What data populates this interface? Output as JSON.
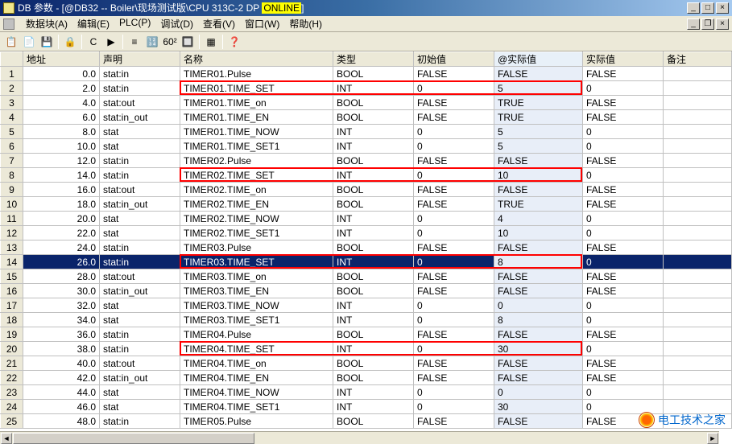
{
  "title": {
    "prefix": "DB 参数 - [@DB32 -- Boiler\\现场测试版\\CPU 313C-2 DP",
    "highlight": "ONLINE",
    "suffix": "]"
  },
  "menu": [
    "数据块(A)",
    "编辑(E)",
    "PLC(P)",
    "调试(D)",
    "查看(V)",
    "窗口(W)",
    "帮助(H)"
  ],
  "toolbar_icons": [
    "📋",
    "📄",
    "💾",
    "",
    "🔒",
    "",
    "C",
    "▶",
    "",
    "≡",
    "🔢",
    "60²",
    "🔲",
    "",
    "▦",
    "",
    "❓"
  ],
  "columns": [
    "",
    "地址",
    "声明",
    "名称",
    "类型",
    "初始值",
    "@实际值",
    "实际值",
    "备注"
  ],
  "col_classes": [
    "rownum",
    "col-addr",
    "col-decl",
    "col-name",
    "col-type",
    "col-init",
    "col-real1",
    "col-real2",
    "col-note"
  ],
  "rows": [
    {
      "n": 1,
      "addr": "0.0",
      "decl": "stat:in",
      "name": "TIMER01.Pulse",
      "type": "BOOL",
      "init": "FALSE",
      "r1": "FALSE",
      "r2": "FALSE"
    },
    {
      "n": 2,
      "addr": "2.0",
      "decl": "stat:in",
      "name": "TIMER01.TIME_SET",
      "type": "INT",
      "init": "0",
      "r1": "5",
      "r2": "0",
      "hl": true
    },
    {
      "n": 3,
      "addr": "4.0",
      "decl": "stat:out",
      "name": "TIMER01.TIME_on",
      "type": "BOOL",
      "init": "FALSE",
      "r1": "TRUE",
      "r2": "FALSE"
    },
    {
      "n": 4,
      "addr": "6.0",
      "decl": "stat:in_out",
      "name": "TIMER01.TIME_EN",
      "type": "BOOL",
      "init": "FALSE",
      "r1": "TRUE",
      "r2": "FALSE"
    },
    {
      "n": 5,
      "addr": "8.0",
      "decl": "stat",
      "name": "TIMER01.TIME_NOW",
      "type": "INT",
      "init": "0",
      "r1": "5",
      "r2": "0"
    },
    {
      "n": 6,
      "addr": "10.0",
      "decl": "stat",
      "name": "TIMER01.TIME_SET1",
      "type": "INT",
      "init": "0",
      "r1": "5",
      "r2": "0"
    },
    {
      "n": 7,
      "addr": "12.0",
      "decl": "stat:in",
      "name": "TIMER02.Pulse",
      "type": "BOOL",
      "init": "FALSE",
      "r1": "FALSE",
      "r2": "FALSE"
    },
    {
      "n": 8,
      "addr": "14.0",
      "decl": "stat:in",
      "name": "TIMER02.TIME_SET",
      "type": "INT",
      "init": "0",
      "r1": "10",
      "r2": "0",
      "hl": true
    },
    {
      "n": 9,
      "addr": "16.0",
      "decl": "stat:out",
      "name": "TIMER02.TIME_on",
      "type": "BOOL",
      "init": "FALSE",
      "r1": "FALSE",
      "r2": "FALSE"
    },
    {
      "n": 10,
      "addr": "18.0",
      "decl": "stat:in_out",
      "name": "TIMER02.TIME_EN",
      "type": "BOOL",
      "init": "FALSE",
      "r1": "TRUE",
      "r2": "FALSE"
    },
    {
      "n": 11,
      "addr": "20.0",
      "decl": "stat",
      "name": "TIMER02.TIME_NOW",
      "type": "INT",
      "init": "0",
      "r1": "4",
      "r2": "0"
    },
    {
      "n": 12,
      "addr": "22.0",
      "decl": "stat",
      "name": "TIMER02.TIME_SET1",
      "type": "INT",
      "init": "0",
      "r1": "10",
      "r2": "0"
    },
    {
      "n": 13,
      "addr": "24.0",
      "decl": "stat:in",
      "name": "TIMER03.Pulse",
      "type": "BOOL",
      "init": "FALSE",
      "r1": "FALSE",
      "r2": "FALSE"
    },
    {
      "n": 14,
      "addr": "26.0",
      "decl": "stat:in",
      "name": "TIMER03.TIME_SET",
      "type": "INT",
      "init": "0",
      "r1": "8",
      "r2": "0",
      "hl": true,
      "sel": true
    },
    {
      "n": 15,
      "addr": "28.0",
      "decl": "stat:out",
      "name": "TIMER03.TIME_on",
      "type": "BOOL",
      "init": "FALSE",
      "r1": "FALSE",
      "r2": "FALSE"
    },
    {
      "n": 16,
      "addr": "30.0",
      "decl": "stat:in_out",
      "name": "TIMER03.TIME_EN",
      "type": "BOOL",
      "init": "FALSE",
      "r1": "FALSE",
      "r2": "FALSE"
    },
    {
      "n": 17,
      "addr": "32.0",
      "decl": "stat",
      "name": "TIMER03.TIME_NOW",
      "type": "INT",
      "init": "0",
      "r1": "0",
      "r2": "0"
    },
    {
      "n": 18,
      "addr": "34.0",
      "decl": "stat",
      "name": "TIMER03.TIME_SET1",
      "type": "INT",
      "init": "0",
      "r1": "8",
      "r2": "0"
    },
    {
      "n": 19,
      "addr": "36.0",
      "decl": "stat:in",
      "name": "TIMER04.Pulse",
      "type": "BOOL",
      "init": "FALSE",
      "r1": "FALSE",
      "r2": "FALSE"
    },
    {
      "n": 20,
      "addr": "38.0",
      "decl": "stat:in",
      "name": "TIMER04.TIME_SET",
      "type": "INT",
      "init": "0",
      "r1": "30",
      "r2": "0",
      "hl": true
    },
    {
      "n": 21,
      "addr": "40.0",
      "decl": "stat:out",
      "name": "TIMER04.TIME_on",
      "type": "BOOL",
      "init": "FALSE",
      "r1": "FALSE",
      "r2": "FALSE"
    },
    {
      "n": 22,
      "addr": "42.0",
      "decl": "stat:in_out",
      "name": "TIMER04.TIME_EN",
      "type": "BOOL",
      "init": "FALSE",
      "r1": "FALSE",
      "r2": "FALSE"
    },
    {
      "n": 23,
      "addr": "44.0",
      "decl": "stat",
      "name": "TIMER04.TIME_NOW",
      "type": "INT",
      "init": "0",
      "r1": "0",
      "r2": "0"
    },
    {
      "n": 24,
      "addr": "46.0",
      "decl": "stat",
      "name": "TIMER04.TIME_SET1",
      "type": "INT",
      "init": "0",
      "r1": "30",
      "r2": "0"
    },
    {
      "n": 25,
      "addr": "48.0",
      "decl": "stat:in",
      "name": "TIMER05.Pulse",
      "type": "BOOL",
      "init": "FALSE",
      "r1": "FALSE",
      "r2": "FALSE"
    }
  ],
  "watermark": "电工技术之家"
}
